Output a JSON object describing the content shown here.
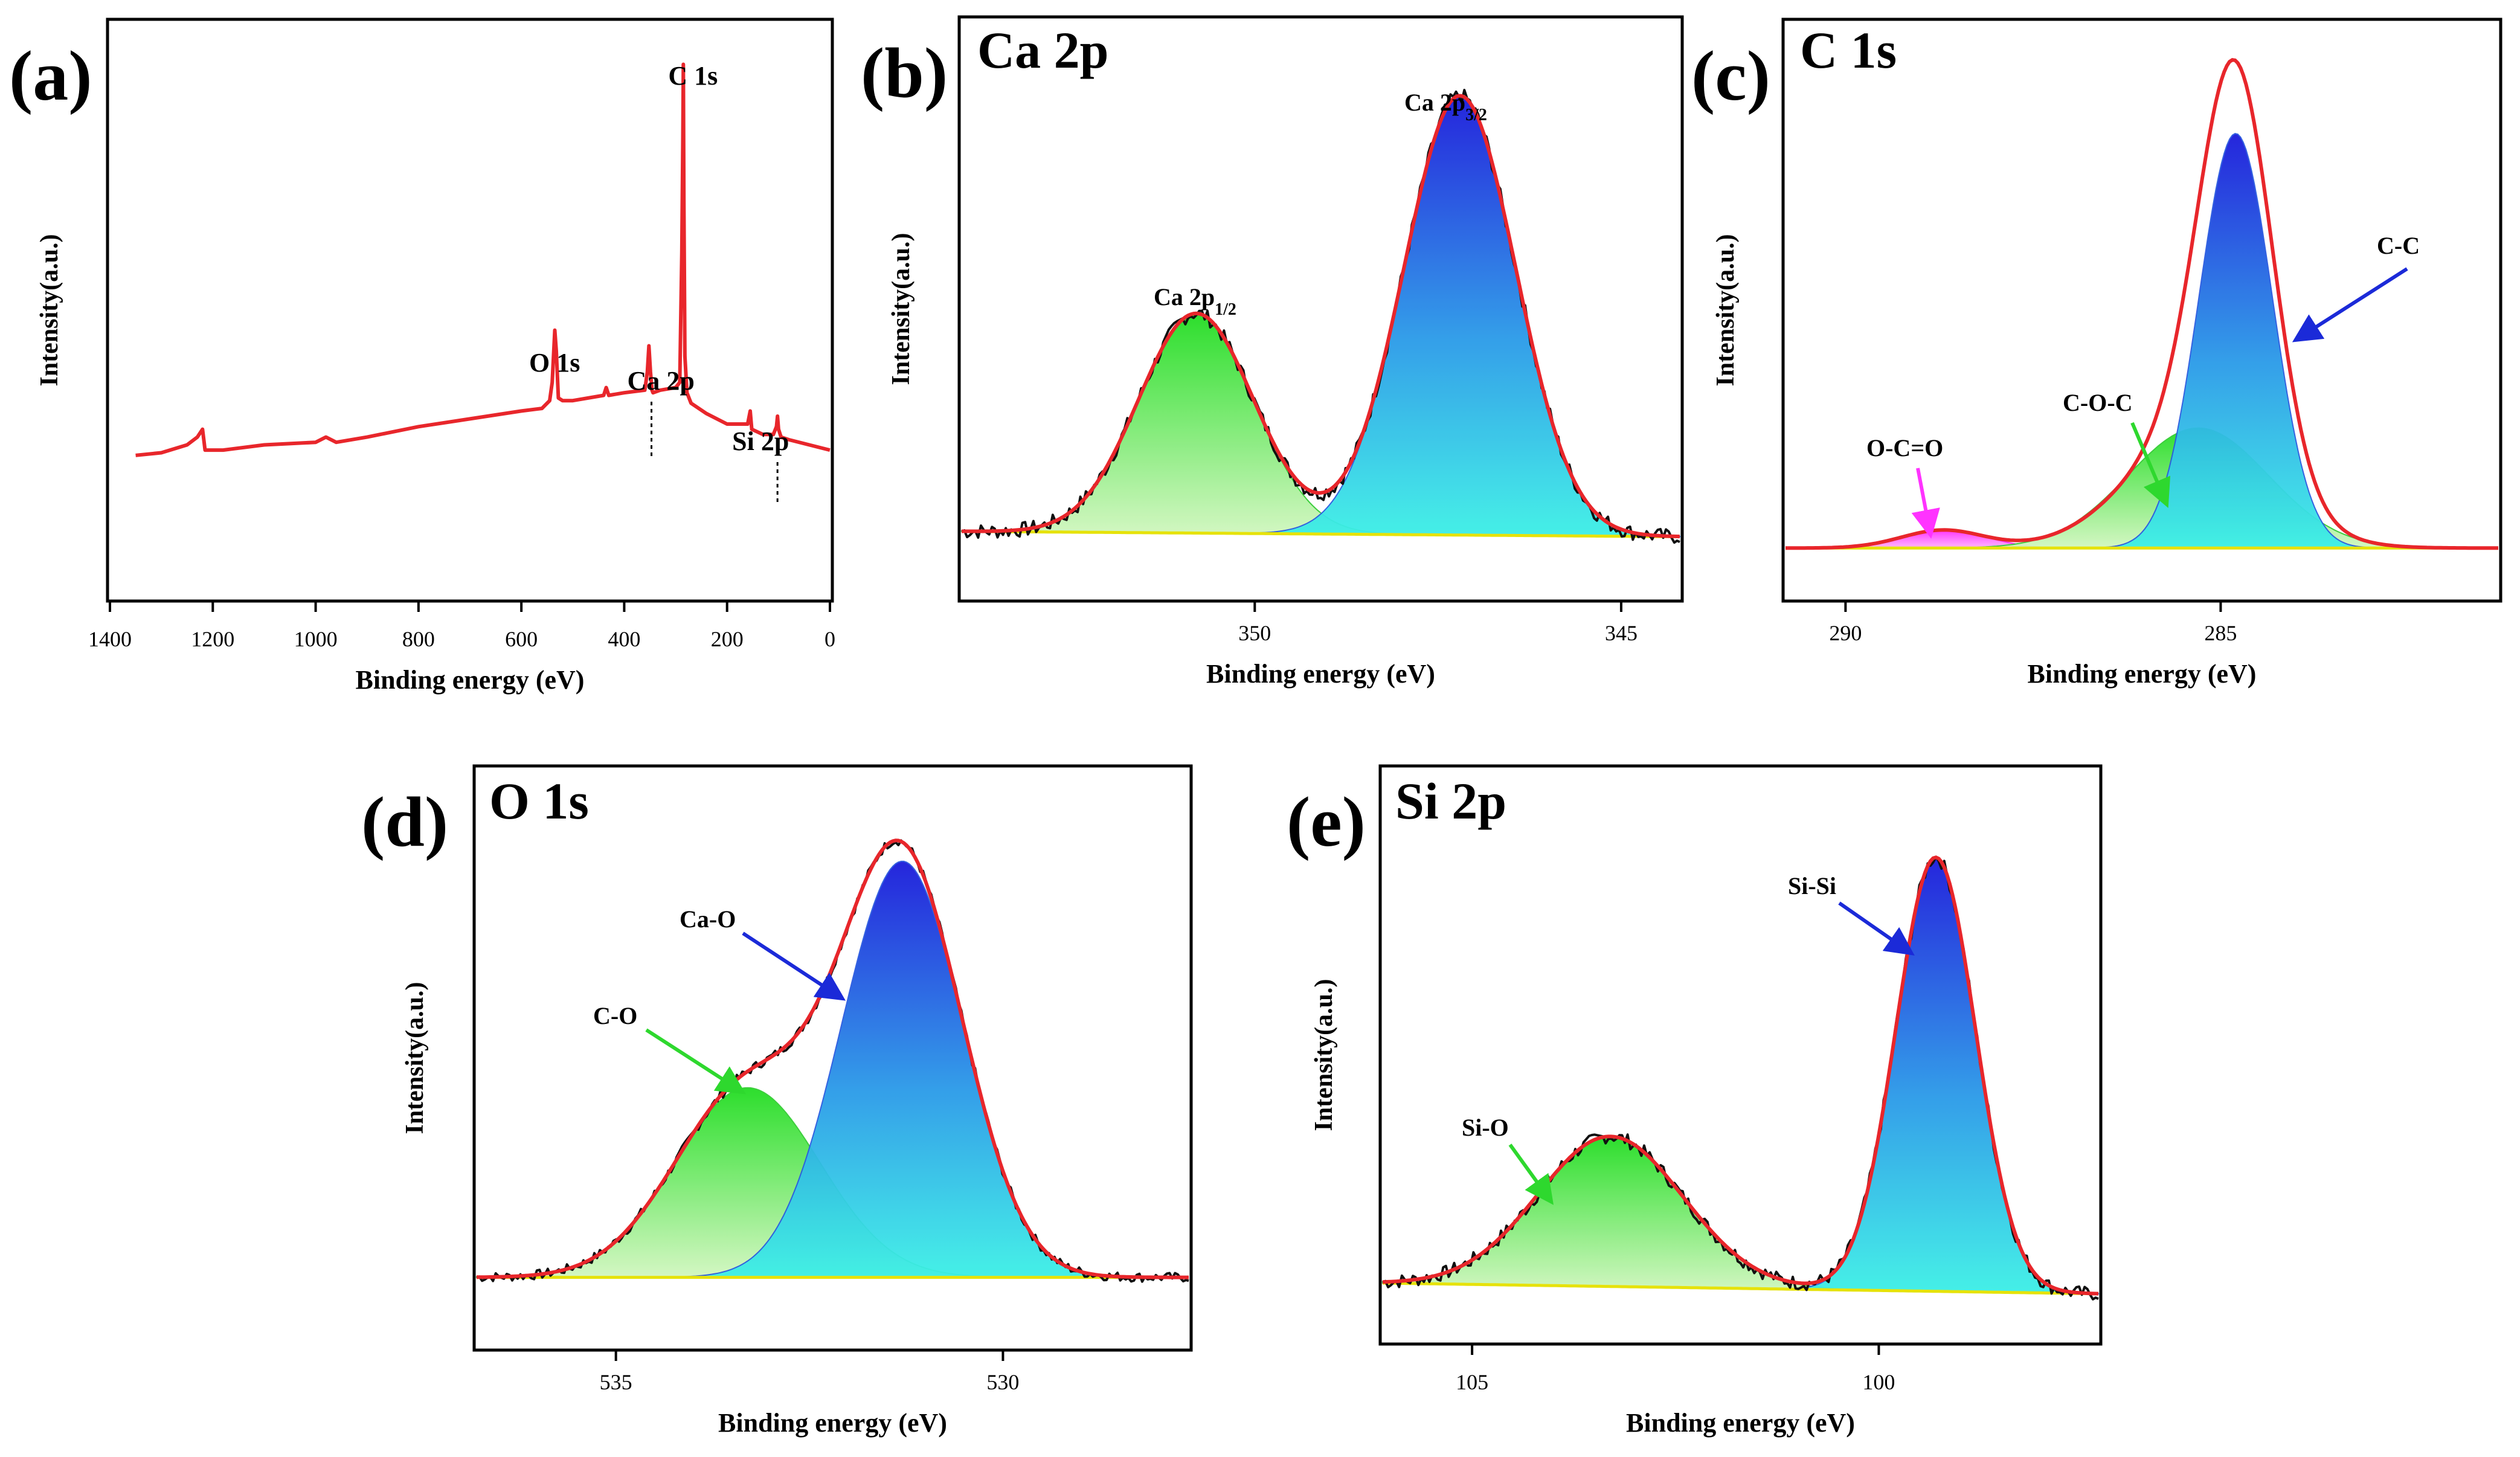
{
  "figure": {
    "panels_order": [
      "a",
      "b",
      "c",
      "d",
      "e"
    ]
  },
  "colors": {
    "frame": "#000000",
    "survey_line": "#e8262b",
    "envelope": "#e8262b",
    "raw": "#111111",
    "baseline": "#e6e20a",
    "blue_top": "#1a1adb",
    "blue_bottom": "#3cf0e6",
    "green_top": "#22dd22",
    "green_bottom": "#d2f7c0",
    "magenta": "#ff22ff",
    "arrow_blue": "#1b2ad8",
    "arrow_green": "#2ed82e",
    "arrow_magenta": "#ff33ff"
  },
  "chart_data": [
    {
      "id": "a",
      "type": "line",
      "panel_label": "(a)",
      "title": "",
      "xlabel": "Binding energy (eV)",
      "ylabel": "Intensity(a.u.)",
      "xlim": [
        1400,
        0
      ],
      "xreversed": true,
      "ylim": [
        0,
        100
      ],
      "xticks": [
        1400,
        1200,
        1000,
        800,
        600,
        400,
        200,
        0
      ],
      "series": [
        {
          "name": "survey",
          "x": [
            1350,
            1300,
            1250,
            1230,
            1220,
            1215,
            1180,
            1100,
            1000,
            980,
            960,
            900,
            800,
            700,
            600,
            560,
            545,
            540,
            535,
            532,
            528,
            520,
            500,
            440,
            435,
            430,
            400,
            360,
            355,
            352,
            349,
            346,
            344,
            330,
            300,
            292,
            288,
            286,
            285,
            284,
            282,
            278,
            270,
            240,
            200,
            160,
            155,
            152,
            130,
            110,
            104,
            102,
            100,
            95,
            80,
            40,
            0
          ],
          "y": [
            21,
            21.5,
            23,
            24.5,
            26,
            22,
            22,
            23,
            23.5,
            24.5,
            23.5,
            24.5,
            26.5,
            28,
            29.5,
            30,
            31.5,
            35,
            45,
            41,
            32,
            31.5,
            31.5,
            32.5,
            34,
            32.5,
            33,
            33.5,
            37,
            42,
            37,
            33.5,
            33,
            33.5,
            34,
            35,
            60,
            82,
            96,
            70,
            40,
            33,
            31,
            29,
            27,
            27,
            29.5,
            26,
            25,
            25,
            26.5,
            28.5,
            26,
            24.5,
            24,
            23,
            22
          ]
        }
      ],
      "annotations": [
        {
          "text": "C 1s",
          "x": 285
        },
        {
          "text": "O 1s",
          "x": 532
        },
        {
          "text": "Ca 2p",
          "x": 347
        },
        {
          "text": "Si 2p",
          "x": 102
        }
      ]
    },
    {
      "id": "b",
      "type": "area",
      "panel_label": "(b)",
      "title": "Ca 2p",
      "xlabel": "Binding energy (eV)",
      "ylabel": "Intensity(a.u.)",
      "xlim": [
        354,
        344.2
      ],
      "xreversed": true,
      "ylim": [
        0,
        100
      ],
      "xticks": [
        350,
        345
      ],
      "components": [
        {
          "name": "Ca 2p1/2",
          "center": 350.8,
          "fwhm": 1.85,
          "height": 41,
          "fill": "green",
          "label_main": "Ca 2p",
          "label_sub": "1/2"
        },
        {
          "name": "Ca 2p3/2",
          "center": 347.2,
          "fwhm": 1.8,
          "height": 82,
          "fill": "blue",
          "label_main": "Ca 2p",
          "label_sub": "3/2"
        }
      ],
      "baseline": {
        "x": [
          354,
          344.2
        ],
        "y": [
          8.5,
          7.5
        ]
      },
      "raw_noise_amplitude": 1.4,
      "envelope": true
    },
    {
      "id": "c",
      "type": "area",
      "panel_label": "(c)",
      "title": "C 1s",
      "xlabel": "Binding energy (eV)",
      "ylabel": "Intensity(a.u.)",
      "xlim": [
        290.8,
        281.3
      ],
      "xreversed": true,
      "ylim": [
        0,
        100
      ],
      "xticks": [
        290,
        285
      ],
      "components": [
        {
          "name": "O-C=O",
          "center": 288.7,
          "fwhm": 1.3,
          "height": 3.5,
          "fill": "magenta",
          "label_main": "O-C=O"
        },
        {
          "name": "C-O-C",
          "center": 285.3,
          "fwhm": 2.2,
          "height": 22,
          "fill": "green",
          "label_main": "C-O-C"
        },
        {
          "name": "C-C",
          "center": 284.8,
          "fwhm": 1.15,
          "height": 76,
          "fill": "blue",
          "label_main": "C-C"
        }
      ],
      "baseline": {
        "x": [
          290.8,
          281.3
        ],
        "y": [
          7.5,
          7.5
        ]
      },
      "envelope_height": 97,
      "envelope": true
    },
    {
      "id": "d",
      "type": "area",
      "panel_label": "(d)",
      "title": "O 1s",
      "xlabel": "Binding energy (eV)",
      "ylabel": "Intensity(a.u.)",
      "xlim": [
        536.8,
        527.6
      ],
      "xreversed": true,
      "ylim": [
        0,
        100
      ],
      "xticks": [
        535,
        530
      ],
      "components": [
        {
          "name": "C-O",
          "center": 533.3,
          "fwhm": 2.2,
          "height": 36,
          "fill": "green",
          "label_main": "C-O"
        },
        {
          "name": "Ca-O",
          "center": 531.3,
          "fwhm": 1.85,
          "height": 79,
          "fill": "blue",
          "label_main": "Ca-O"
        }
      ],
      "baseline": {
        "x": [
          536.8,
          527.6
        ],
        "y": [
          7.5,
          7.5
        ]
      },
      "raw_noise_amplitude": 0.9,
      "envelope": true
    },
    {
      "id": "e",
      "type": "area",
      "panel_label": "(e)",
      "title": "Si 2p",
      "xlabel": "Binding energy (eV)",
      "ylabel": "Intensity(a.u.)",
      "xlim": [
        106.1,
        97.3
      ],
      "xreversed": true,
      "ylim": [
        0,
        100
      ],
      "xticks": [
        105,
        100
      ],
      "components": [
        {
          "name": "Si-O",
          "center": 103.3,
          "fwhm": 2.1,
          "height": 28,
          "fill": "green",
          "label_main": "Si-O"
        },
        {
          "name": "Si-Si",
          "center": 99.3,
          "fwhm": 1.15,
          "height": 81,
          "fill": "blue",
          "label_main": "Si-Si"
        }
      ],
      "baseline": {
        "x": [
          106.1,
          97.3
        ],
        "y": [
          8,
          6
        ]
      },
      "raw_noise_amplitude": 1.3,
      "envelope": true
    }
  ]
}
